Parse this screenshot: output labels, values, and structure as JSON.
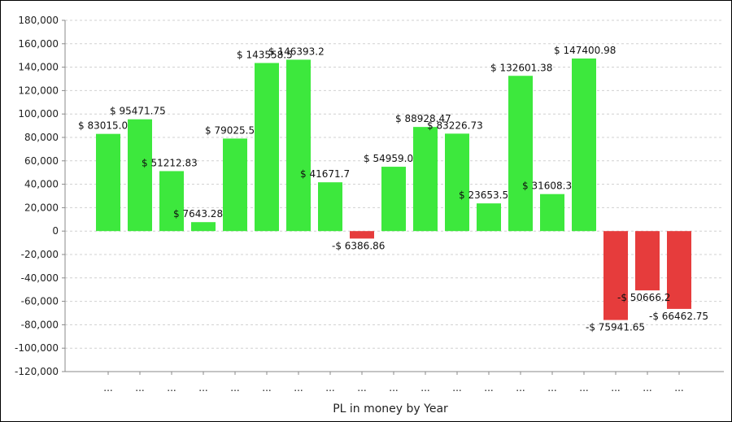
{
  "chart_data": {
    "type": "bar",
    "title": "",
    "xlabel": "PL in money by Year",
    "ylabel": "",
    "ylim": [
      -120000,
      180000
    ],
    "y_ticks": [
      180000,
      160000,
      140000,
      120000,
      100000,
      80000,
      60000,
      40000,
      20000,
      0,
      -20000,
      -40000,
      -60000,
      -80000,
      -100000,
      -120000
    ],
    "y_tick_labels": [
      "180,000",
      "160,000",
      "140,000",
      "120,000",
      "100,000",
      "80,000",
      "60,000",
      "40,000",
      "20,000",
      "0",
      "-20,000",
      "-40,000",
      "-60,000",
      "-80,000",
      "-100,000",
      "-120,000"
    ],
    "categories": [
      "...",
      "...",
      "...",
      "...",
      "...",
      "...",
      "...",
      "...",
      "...",
      "...",
      "...",
      "...",
      "...",
      "...",
      "...",
      "...",
      "...",
      "...",
      "..."
    ],
    "values": [
      83015.0,
      95471.75,
      51212.83,
      7643.28,
      79025.5,
      143558.5,
      146393.2,
      41671.7,
      -6386.86,
      54959.0,
      88928.47,
      83226.73,
      23653.5,
      132601.38,
      31608.3,
      147400.98,
      -75941.65,
      -50666.2,
      -66462.75
    ],
    "data_labels": [
      "$ 83015.0",
      "$ 95471.75",
      "$ 51212.83",
      "$ 7643.28",
      "$ 79025.5",
      "$ 143558.5",
      "$ 146393.2",
      "$ 41671.7",
      "-$ 6386.86",
      "$ 54959.0",
      "$ 88928.47",
      "$ 83226.73",
      "$ 23653.5",
      "$ 132601.38",
      "$ 31608.3",
      "$ 147400.98",
      "-$ 75941.65",
      "-$ 50666.2",
      "-$ 66462.75"
    ],
    "grid": true,
    "colors": {
      "positive": "#3de83d",
      "negative": "#e63c3c",
      "grid": "#d0d0d0",
      "axis": "#888888"
    }
  }
}
